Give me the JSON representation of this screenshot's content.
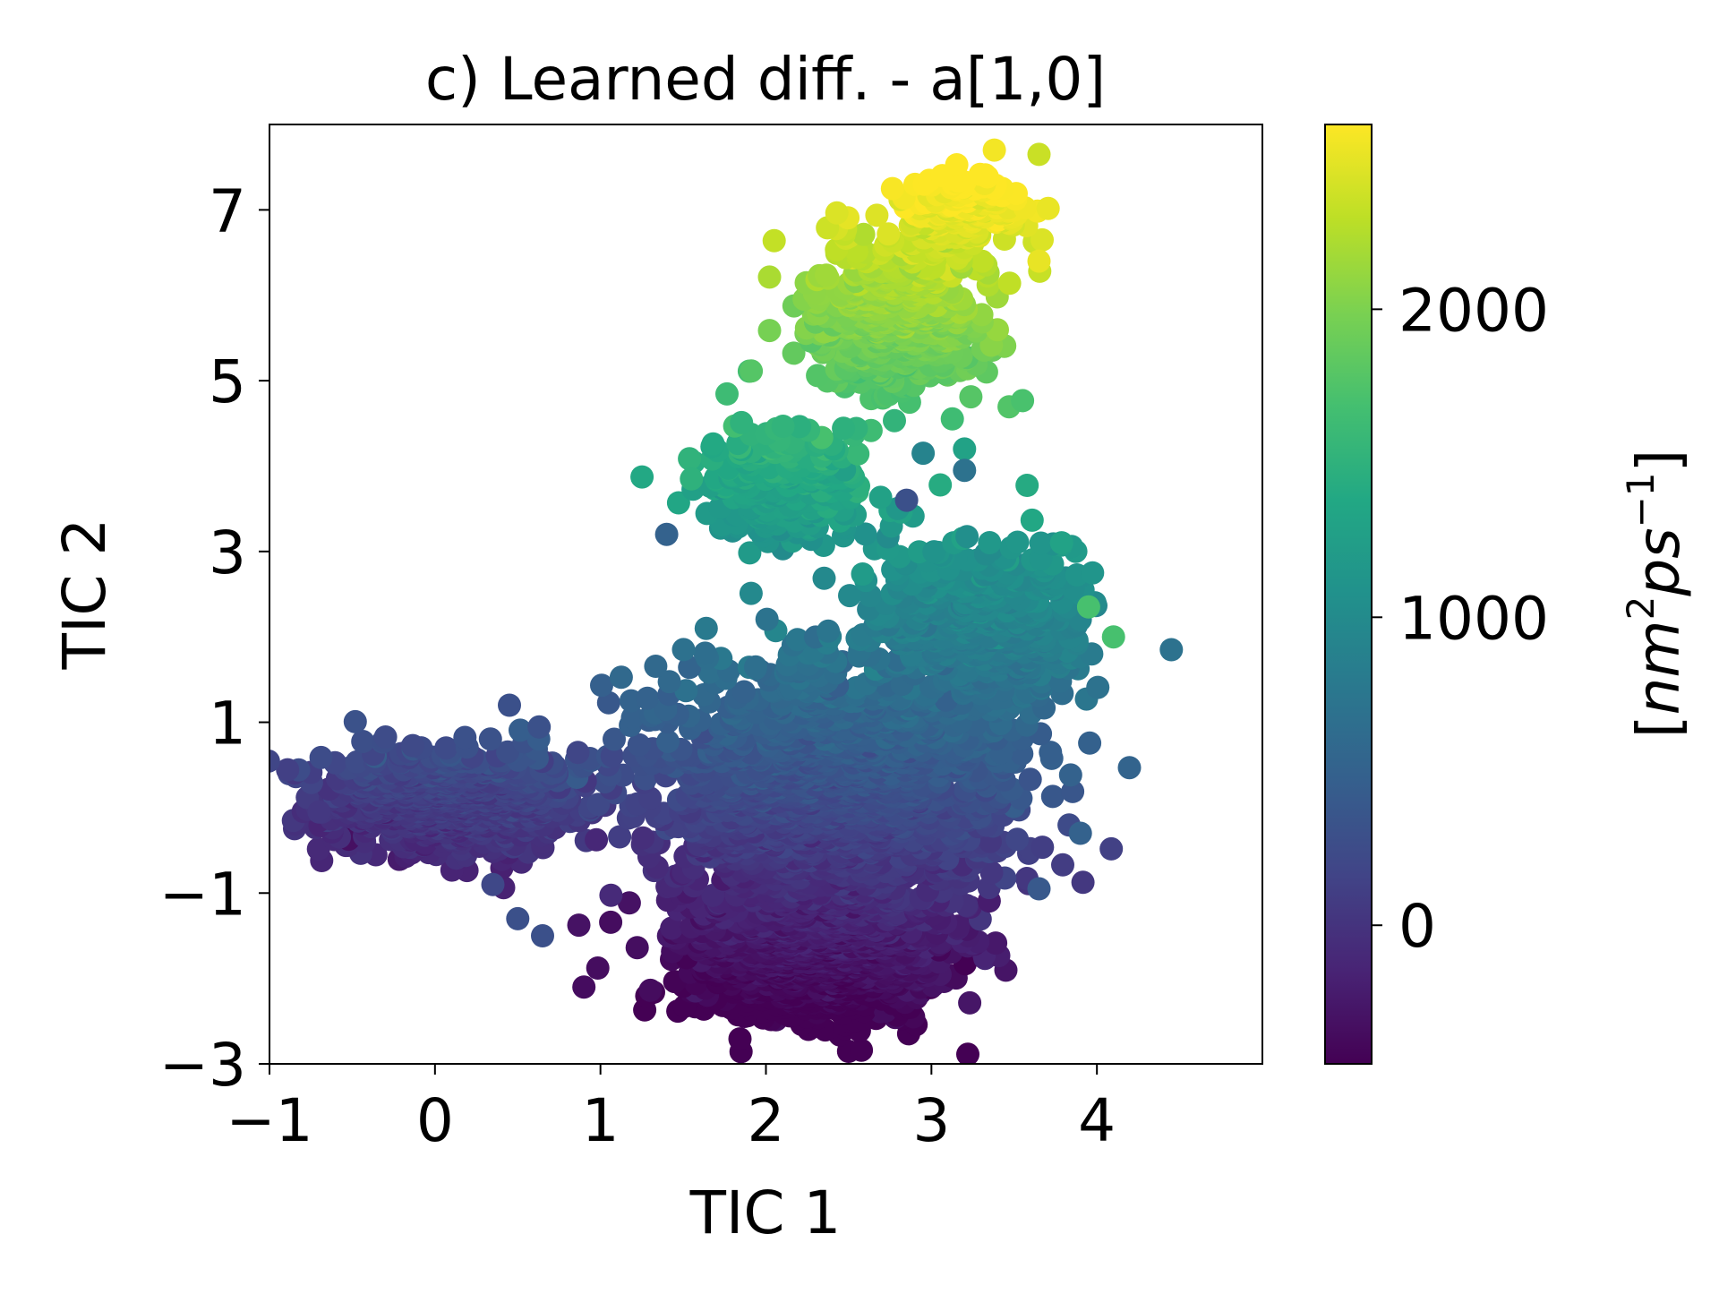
{
  "chart_data": {
    "type": "scatter",
    "title": "c) Learned diff. - a[1,0]",
    "xlabel": "TIC 1",
    "ylabel": "TIC 2",
    "xlim": [
      -1,
      5
    ],
    "ylim": [
      -3,
      8
    ],
    "xticks": [
      -1,
      0,
      1,
      2,
      3,
      4
    ],
    "xtick_labels": [
      "−1",
      "0",
      "1",
      "2",
      "3",
      "4"
    ],
    "yticks": [
      -3,
      -1,
      1,
      3,
      5,
      7
    ],
    "ytick_labels": [
      "−3",
      "−1",
      "1",
      "3",
      "5",
      "7"
    ],
    "grid": false,
    "colorbar": {
      "label_prefix": "[",
      "label_main": "nm",
      "label_sup1": "2",
      "label_mid": "ps",
      "label_sup2": "−1",
      "label_suffix": "]",
      "colormap": "viridis",
      "range": [
        -450,
        2600
      ],
      "ticks": [
        0,
        1000,
        2000
      ],
      "tick_labels": [
        "0",
        "1000",
        "2000"
      ]
    },
    "regions": [
      {
        "name": "",
        "x_center": 0.1,
        "y_center": 0.1,
        "x_spread": 0.7,
        "y_spread": 0.55,
        "count": 900
      },
      {
        "name": "",
        "x_center": 2.3,
        "y_center": -1.7,
        "x_spread": 0.7,
        "y_spread": 0.7,
        "count": 1100
      },
      {
        "name": "",
        "x_center": 2.4,
        "y_center": 0.2,
        "x_spread": 1.0,
        "y_spread": 1.4,
        "count": 1800
      },
      {
        "name": "",
        "x_center": 3.3,
        "y_center": 2.2,
        "x_spread": 0.6,
        "y_spread": 0.9,
        "count": 500
      },
      {
        "name": "",
        "x_center": 2.1,
        "y_center": 3.8,
        "x_spread": 0.5,
        "y_spread": 0.6,
        "count": 250
      },
      {
        "name": "",
        "x_center": 2.8,
        "y_center": 5.8,
        "x_spread": 0.5,
        "y_spread": 0.8,
        "count": 550
      },
      {
        "name": "",
        "x_center": 3.2,
        "y_center": 7.0,
        "x_spread": 0.3,
        "y_spread": 0.4,
        "count": 200
      }
    ],
    "outlier_points": [
      {
        "x": 4.45,
        "y": 1.85,
        "c": 700
      },
      {
        "x": 4.1,
        "y": 2.0,
        "c": 1700
      },
      {
        "x": 3.95,
        "y": 2.35,
        "c": 1700
      },
      {
        "x": 3.65,
        "y": 6.4,
        "c": 2500
      },
      {
        "x": 3.38,
        "y": 7.7,
        "c": 2550
      },
      {
        "x": 3.65,
        "y": 7.65,
        "c": 2350
      },
      {
        "x": 3.2,
        "y": 4.2,
        "c": 1300
      },
      {
        "x": 3.2,
        "y": 3.95,
        "c": 700
      },
      {
        "x": 2.85,
        "y": 3.6,
        "c": 300
      },
      {
        "x": 2.95,
        "y": 4.15,
        "c": 900
      },
      {
        "x": 1.4,
        "y": 3.2,
        "c": 500
      },
      {
        "x": 1.55,
        "y": 3.85,
        "c": 1500
      },
      {
        "x": 0.45,
        "y": 1.2,
        "c": 300
      },
      {
        "x": 0.9,
        "y": -2.1,
        "c": -350
      },
      {
        "x": -0.7,
        "y": -0.05,
        "c": 50
      },
      {
        "x": 3.65,
        "y": -0.95,
        "c": 400
      },
      {
        "x": 3.9,
        "y": -0.3,
        "c": 500
      },
      {
        "x": 0.5,
        "y": -1.3,
        "c": 300
      },
      {
        "x": 0.35,
        "y": -0.9,
        "c": 200
      },
      {
        "x": 0.65,
        "y": -1.5,
        "c": 300
      }
    ]
  }
}
